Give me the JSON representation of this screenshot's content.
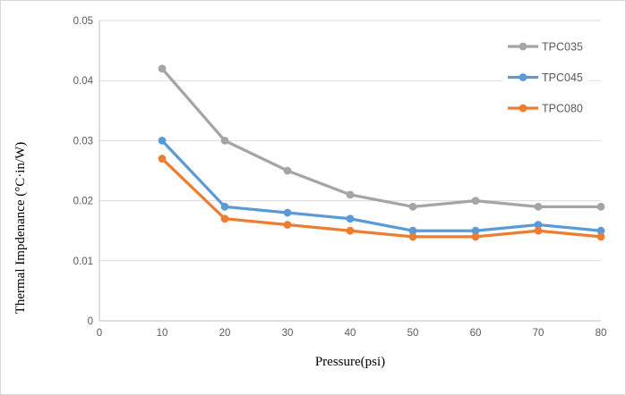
{
  "chart_data": {
    "type": "line",
    "title": "",
    "xlabel": "Pressure(psi)",
    "ylabel": "Thermal Impdenance (°C·in/W)",
    "x": [
      10,
      20,
      30,
      40,
      50,
      60,
      70,
      80
    ],
    "x_ticks": [
      {
        "value": 0,
        "label": "0"
      },
      {
        "value": 10,
        "label": "10"
      },
      {
        "value": 20,
        "label": "20"
      },
      {
        "value": 30,
        "label": "30"
      },
      {
        "value": 40,
        "label": "40"
      },
      {
        "value": 50,
        "label": "50"
      },
      {
        "value": 60,
        "label": "60"
      },
      {
        "value": 70,
        "label": "70"
      },
      {
        "value": 80,
        "label": "80"
      }
    ],
    "y_ticks": [
      {
        "value": 0,
        "label": "0"
      },
      {
        "value": 0.01,
        "label": "0.01"
      },
      {
        "value": 0.02,
        "label": "0.02"
      },
      {
        "value": 0.03,
        "label": "0.03"
      },
      {
        "value": 0.04,
        "label": "0.04"
      },
      {
        "value": 0.05,
        "label": "0.05"
      }
    ],
    "xlim": [
      0,
      80
    ],
    "ylim": [
      0,
      0.05
    ],
    "grid": true,
    "legend_position": "top-right",
    "series": [
      {
        "name": "TPC035",
        "color": "#a5a5a5",
        "values": [
          0.042,
          0.03,
          0.025,
          0.021,
          0.019,
          0.02,
          0.019,
          0.019
        ]
      },
      {
        "name": "TPC045",
        "color": "#5b9bd5",
        "values": [
          0.03,
          0.019,
          0.018,
          0.017,
          0.015,
          0.015,
          0.016,
          0.015
        ]
      },
      {
        "name": "TPC080",
        "color": "#ed7d31",
        "values": [
          0.027,
          0.017,
          0.016,
          0.015,
          0.014,
          0.014,
          0.015,
          0.014
        ]
      }
    ],
    "colors": {
      "gridline": "#d9d9d9",
      "axis_line": "#bfbfbf",
      "tick_text": "#595959",
      "legend_text": "#595959",
      "background": "#ffffff",
      "frame_border": "#d7d7d7"
    }
  }
}
